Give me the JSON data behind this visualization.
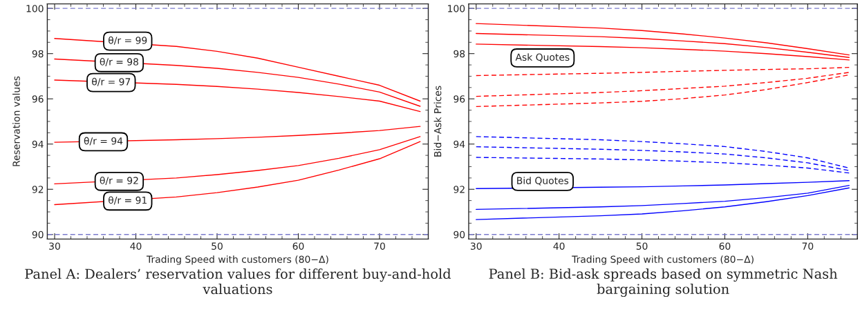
{
  "chart_data": [
    {
      "type": "line",
      "title": "Panel A: Dealers’ reservation values for different buy-and-hold valuations",
      "xlabel": "Trading Speed with customers (80−Δ)",
      "ylabel": "Reservation values",
      "x": [
        30,
        45,
        50,
        55,
        60,
        65,
        70,
        75
      ],
      "xlim": [
        29.1,
        76
      ],
      "xticks": [
        30,
        40,
        50,
        60,
        70
      ],
      "ylim": [
        89.8,
        100.2
      ],
      "yticks": [
        90,
        92,
        94,
        96,
        98,
        100
      ],
      "grid": false,
      "legend": false,
      "series": [
        {
          "color": "#ff0000",
          "line_style": "solid",
          "values": [
            98.67,
            98.32,
            98.1,
            97.8,
            97.4,
            97.0,
            96.6,
            95.9
          ]
        },
        {
          "color": "#ff0000",
          "line_style": "solid",
          "values": [
            97.76,
            97.48,
            97.35,
            97.17,
            96.95,
            96.65,
            96.3,
            95.67
          ]
        },
        {
          "color": "#ff0000",
          "line_style": "solid",
          "values": [
            96.83,
            96.64,
            96.55,
            96.43,
            96.28,
            96.1,
            95.9,
            95.44
          ]
        },
        {
          "color": "#ff0000",
          "line_style": "solid",
          "values": [
            94.08,
            94.19,
            94.24,
            94.3,
            94.38,
            94.48,
            94.6,
            94.78
          ]
        },
        {
          "color": "#ff0000",
          "line_style": "solid",
          "values": [
            92.24,
            92.5,
            92.65,
            92.83,
            93.05,
            93.37,
            93.75,
            94.33
          ]
        },
        {
          "color": "#ff0000",
          "line_style": "solid",
          "values": [
            91.32,
            91.66,
            91.85,
            92.1,
            92.4,
            92.85,
            93.35,
            94.11
          ]
        }
      ],
      "ref_lines": [
        {
          "axis": "y",
          "value": 100,
          "color": "#7a7acc",
          "line_style": "dashed"
        },
        {
          "axis": "y",
          "value": 90,
          "color": "#7a7acc",
          "line_style": "dashed"
        }
      ],
      "annotations": [
        {
          "text": "θ/r = 99",
          "x": 39.0,
          "y": 98.55
        },
        {
          "text": "θ/r = 98",
          "x": 37.95,
          "y": 97.6
        },
        {
          "text": "θ/r = 97",
          "x": 36.96,
          "y": 96.72
        },
        {
          "text": "θ/r = 94",
          "x": 36.0,
          "y": 94.1
        },
        {
          "text": "θ/r = 92",
          "x": 37.95,
          "y": 92.35
        },
        {
          "text": "θ/r = 91",
          "x": 39.0,
          "y": 91.48
        }
      ]
    },
    {
      "type": "line",
      "title": "Panel B: Bid-ask spreads based on symmetric Nash bargaining solution",
      "xlabel": "Trading Speed with customers (80−Δ)",
      "ylabel": "Bid−Ask Prices",
      "x": [
        30,
        45,
        50,
        55,
        60,
        65,
        70,
        75
      ],
      "xlim": [
        29.1,
        76
      ],
      "xticks": [
        30,
        40,
        50,
        60,
        70
      ],
      "ylim": [
        89.8,
        100.2
      ],
      "yticks": [
        90,
        92,
        94,
        96,
        98,
        100
      ],
      "grid": false,
      "legend": false,
      "series": [
        {
          "color": "#ff0000",
          "line_style": "solid",
          "values": [
            99.33,
            99.13,
            99.02,
            98.87,
            98.69,
            98.48,
            98.22,
            97.94
          ]
        },
        {
          "color": "#ff0000",
          "line_style": "solid",
          "values": [
            98.89,
            98.75,
            98.67,
            98.56,
            98.44,
            98.27,
            98.06,
            97.83
          ]
        },
        {
          "color": "#ff0000",
          "line_style": "solid",
          "values": [
            98.42,
            98.31,
            98.26,
            98.19,
            98.11,
            98.0,
            97.87,
            97.72
          ]
        },
        {
          "color": "#ff0000",
          "line_style": "dashed",
          "values": [
            97.03,
            97.13,
            97.17,
            97.22,
            97.26,
            97.3,
            97.33,
            97.39
          ]
        },
        {
          "color": "#ff0000",
          "line_style": "dashed",
          "values": [
            96.11,
            96.28,
            96.36,
            96.46,
            96.56,
            96.72,
            96.91,
            97.17
          ]
        },
        {
          "color": "#ff0000",
          "line_style": "dashed",
          "values": [
            95.66,
            95.82,
            95.89,
            96.01,
            96.17,
            96.41,
            96.72,
            97.06
          ]
        },
        {
          "color": "#0000ff",
          "line_style": "dashed",
          "values": [
            94.33,
            94.19,
            94.11,
            94.01,
            93.89,
            93.67,
            93.39,
            92.94
          ]
        },
        {
          "color": "#0000ff",
          "line_style": "dashed",
          "values": [
            93.88,
            93.77,
            93.72,
            93.65,
            93.56,
            93.39,
            93.17,
            92.83
          ]
        },
        {
          "color": "#0000ff",
          "line_style": "dashed",
          "values": [
            93.41,
            93.34,
            93.3,
            93.24,
            93.17,
            93.07,
            92.94,
            92.72
          ]
        },
        {
          "color": "#0000ff",
          "line_style": "solid",
          "values": [
            92.03,
            92.09,
            92.11,
            92.15,
            92.19,
            92.25,
            92.31,
            92.38
          ]
        },
        {
          "color": "#0000ff",
          "line_style": "solid",
          "values": [
            91.11,
            91.22,
            91.28,
            91.37,
            91.47,
            91.63,
            91.83,
            92.17
          ]
        },
        {
          "color": "#0000ff",
          "line_style": "solid",
          "values": [
            90.66,
            90.83,
            90.91,
            91.05,
            91.22,
            91.45,
            91.72,
            92.06
          ]
        }
      ],
      "ref_lines": [
        {
          "axis": "y",
          "value": 100,
          "color": "#7a7acc",
          "line_style": "dashed"
        },
        {
          "axis": "y",
          "value": 90,
          "color": "#7a7acc",
          "line_style": "dashed"
        }
      ],
      "annotations": [
        "Ask Quotes",
        "Bid Quotes"
      ]
    }
  ]
}
